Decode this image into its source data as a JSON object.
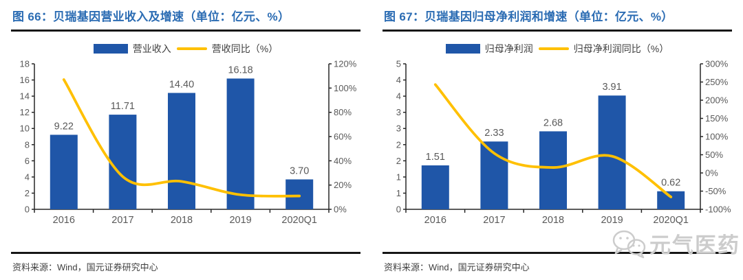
{
  "panels": [
    {
      "title": "图 66：贝瑞基因营业收入及增速（单位：亿元、%）",
      "legend": [
        {
          "label": "营业收入",
          "type": "bar"
        },
        {
          "label": "营收同比（%）",
          "type": "line"
        }
      ],
      "source": "资料来源：Wind，国元证券研究中心"
    },
    {
      "title": "图 67：贝瑞基因归母净利润和增速（单位：亿元、%）",
      "legend": [
        {
          "label": "归母净利润",
          "type": "bar"
        },
        {
          "label": "归母净利润同比（%）",
          "type": "line"
        }
      ],
      "source": "资料来源：Wind，国元证券研究中心"
    }
  ],
  "watermark": {
    "icon": "wechat-icon",
    "text": "元气医药"
  },
  "colors": {
    "bar": "#1F56A8",
    "line": "#FFC000",
    "title": "#2B6CB3",
    "axis": "#262626",
    "tick_text": "#595959",
    "value_label": "#595959",
    "rule": "#161616",
    "watermark": "#CCCCCC"
  },
  "chart_data": [
    {
      "type": "bar",
      "title": "贝瑞基因营业收入及增速（单位：亿元、%）",
      "categories": [
        "2016",
        "2017",
        "2018",
        "2019",
        "2020Q1"
      ],
      "series": [
        {
          "name": "营业收入",
          "type": "bar",
          "axis": "left",
          "values": [
            9.22,
            11.71,
            14.4,
            16.18,
            3.7
          ],
          "labels": [
            "9.22",
            "11.71",
            "14.40",
            "16.18",
            "3.70"
          ],
          "color": "#1F56A8"
        },
        {
          "name": "营收同比（%）",
          "type": "line",
          "axis": "right",
          "values": [
            107,
            27,
            23,
            12,
            11
          ],
          "color": "#FFC000"
        }
      ],
      "left_axis": {
        "min": 0,
        "max": 18,
        "tick_labels": [
          "0",
          "2",
          "4",
          "6",
          "8",
          "10",
          "12",
          "14",
          "16",
          "18"
        ]
      },
      "right_axis": {
        "min": 0,
        "max": 120,
        "tick_labels": [
          "0%",
          "20%",
          "40%",
          "60%",
          "80%",
          "100%",
          "120%"
        ]
      },
      "grid": false,
      "legend_position": "top"
    },
    {
      "type": "bar",
      "title": "贝瑞基因归母净利润和增速（单位：亿元、%）",
      "categories": [
        "2016",
        "2017",
        "2018",
        "2019",
        "2020Q1"
      ],
      "series": [
        {
          "name": "归母净利润",
          "type": "bar",
          "axis": "left",
          "values": [
            1.51,
            2.33,
            2.68,
            3.91,
            0.62
          ],
          "labels": [
            "1.51",
            "2.33",
            "2.68",
            "3.91",
            "0.62"
          ],
          "color": "#1F56A8"
        },
        {
          "name": "归母净利润同比（%）",
          "type": "line",
          "axis": "right",
          "values": [
            243,
            54,
            15,
            46,
            -66
          ],
          "color": "#FFC000"
        }
      ],
      "left_axis": {
        "min": 0,
        "max": 5,
        "tick_labels": [
          "0",
          "1",
          "1",
          "2",
          "2",
          "3",
          "3",
          "4",
          "4",
          "5"
        ]
      },
      "right_axis": {
        "min": -100,
        "max": 300,
        "tick_labels": [
          "-100%",
          "-50%",
          "0%",
          "50%",
          "100%",
          "150%",
          "200%",
          "250%",
          "300%"
        ]
      },
      "grid": false,
      "legend_position": "top"
    }
  ]
}
